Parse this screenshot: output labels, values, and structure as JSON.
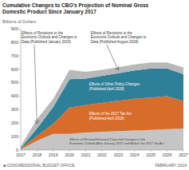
{
  "chart_data": {
    "type": "area",
    "stacked": true,
    "title": "Cumulative Changes to CBO’s Projection of Nominal Gross\nDomestic Product Since January 2017",
    "ylabel": "Billions of Dollars",
    "x": [
      2017,
      2018,
      2019,
      2020,
      2021,
      2022,
      2023,
      2024,
      2025,
      2026,
      2027
    ],
    "xlim": [
      2017,
      2027
    ],
    "xticks": [
      2017,
      2018,
      2019,
      2020,
      2021,
      2022,
      2023,
      2024,
      2025,
      2026,
      2027
    ],
    "ylim": [
      0,
      900
    ],
    "yticks": [
      0,
      100,
      200,
      300,
      400,
      500,
      600,
      700,
      800,
      900
    ],
    "series": [
      {
        "color": "#c5c5c5",
        "values": [
          5,
          70,
          120,
          120,
          130,
          135,
          140,
          145,
          150,
          155,
          158
        ]
      },
      {
        "color": "#d86c2a",
        "values": [
          5,
          35,
          75,
          195,
          205,
          215,
          225,
          235,
          240,
          245,
          205
        ]
      },
      {
        "color": "#2e7f98",
        "values": [
          5,
          55,
          125,
          210,
          195,
          200,
          205,
          210,
          215,
          205,
          200
        ]
      },
      {
        "color": "#b8b8b8",
        "values": [
          15,
          70,
          60,
          70,
          50,
          45,
          45,
          45,
          45,
          45,
          50
        ]
      }
    ],
    "annotations": [
      "Effects of Revisions to the\nEconomic Outlook and Changes to\nData (Published January 2019)",
      "Effects of Revisions to the\nEconomic Outlook and Changes to\nData (Published August 2018)",
      "Effects of Other Policy Changes\n(Published April 2018)",
      "Effects of the 2017 Tax Act\n(Published April 2018)",
      "Effects of Revised Historical Data and Changes in the\nEconomic Outlook After January 2017 and Before the 2017 Tax Act",
      "■ CONGRESSIONAL BUDGET OFFICE",
      "FEBRUARY 2019"
    ]
  }
}
